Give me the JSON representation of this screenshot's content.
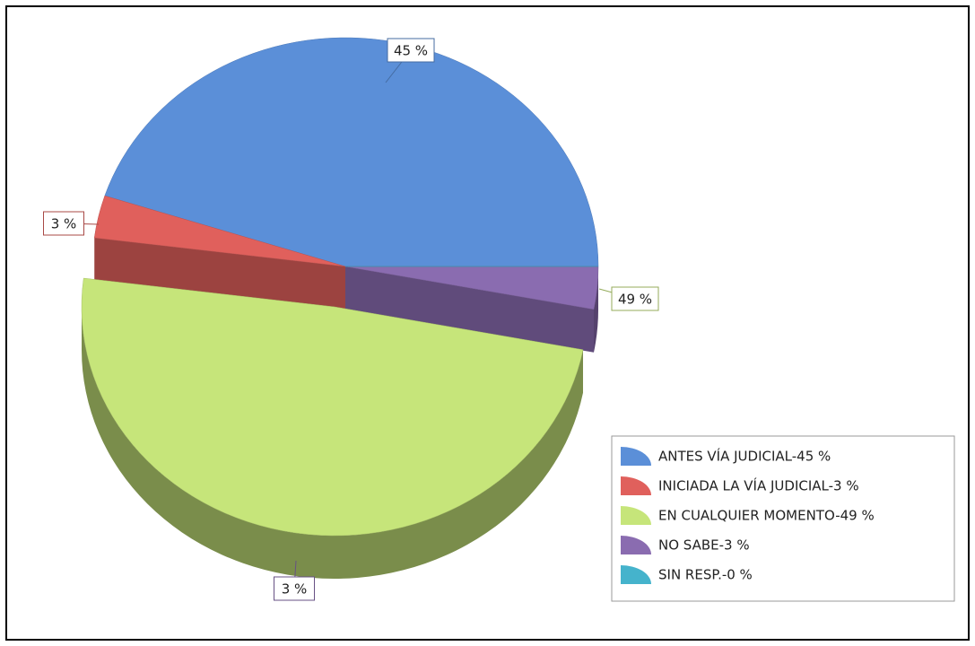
{
  "chart_data": {
    "type": "pie",
    "categories": [
      "ANTES VÍA JUDICIAL-45 %",
      "INICIADA LA VÍA JUDICIAL-3 %",
      "EN CUALQUIER MOMENTO-49 %",
      "NO SABE-3 %",
      "SIN RESP.-0 %"
    ],
    "values": [
      45,
      3,
      49,
      3,
      0
    ],
    "value_labels": [
      "45 %",
      "3 %",
      "49 %",
      "3 %",
      null
    ],
    "colors": [
      "#5b8fd8",
      "#e0605c",
      "#c6e57a",
      "#8a6cb0",
      "#45b3cc"
    ],
    "exploded": [
      2
    ]
  }
}
